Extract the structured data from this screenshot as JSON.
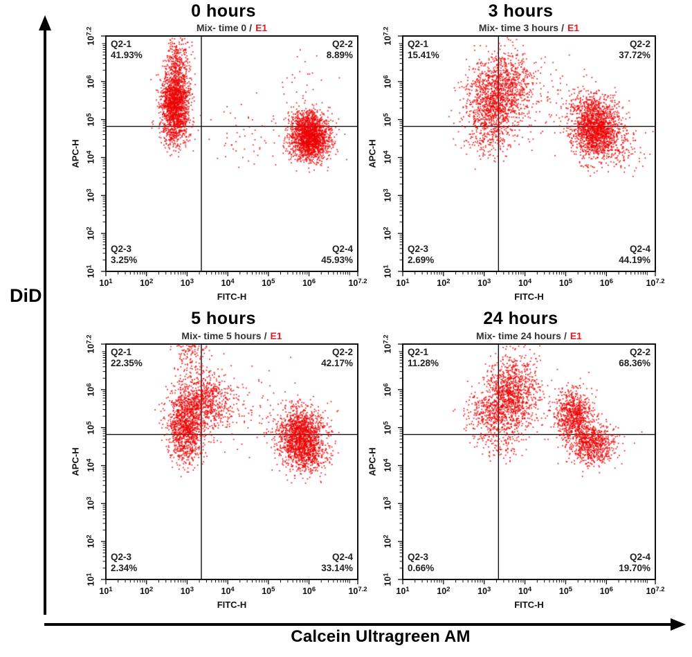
{
  "figure": {
    "outer_y_label": "DiD",
    "outer_x_label": "Calcein Ultragreen AM"
  },
  "chart_data": {
    "type": "scatter",
    "dot_color": "#ec0000",
    "frame_color": "#111111",
    "accent_red": "#e01b24",
    "x_axis": {
      "label": "FITC-H",
      "scale": "log10",
      "min_exp": 1,
      "max_exp": 7.2,
      "tick_exponents": [
        "1",
        "2",
        "3",
        "4",
        "5",
        "6",
        "7.2"
      ],
      "tick_values": [
        1,
        2,
        3,
        4,
        5,
        6,
        7.2
      ]
    },
    "y_axis": {
      "label": "APC-H",
      "scale": "log10",
      "min_exp": 1,
      "max_exp": 7.2,
      "tick_exponents": [
        "1",
        "2",
        "3",
        "4",
        "5",
        "6",
        "7.2"
      ],
      "tick_values": [
        1,
        2,
        3,
        4,
        5,
        6,
        7.2
      ]
    },
    "panels": [
      {
        "title": "0 hours",
        "subtitle": "Mix- time 0",
        "run_label": "E1",
        "gate_x": 3.35,
        "gate_y": 4.82,
        "quadrants": [
          {
            "label": "Q2-1",
            "pct": "41.93%"
          },
          {
            "label": "Q2-2",
            "pct": "8.89%"
          },
          {
            "label": "Q2-3",
            "pct": "3.25%"
          },
          {
            "label": "Q2-4",
            "pct": "45.93%"
          }
        ],
        "seed": 11,
        "clusters": [
          [
            2.7,
            5.45,
            0.17,
            0.42,
            1500
          ],
          [
            2.78,
            6.45,
            0.16,
            0.38,
            320
          ],
          [
            2.74,
            4.72,
            0.2,
            0.25,
            220
          ],
          [
            6.02,
            4.5,
            0.25,
            0.28,
            1700
          ],
          [
            6.0,
            4.97,
            0.22,
            0.18,
            260
          ],
          [
            4.6,
            4.6,
            0.6,
            0.4,
            60
          ],
          [
            5.85,
            5.9,
            0.35,
            0.55,
            30
          ]
        ]
      },
      {
        "title": "3 hours",
        "subtitle": "Mix- time 3 hours",
        "run_label": "E1",
        "gate_x": 3.35,
        "gate_y": 4.82,
        "quadrants": [
          {
            "label": "Q2-1",
            "pct": "15.41%"
          },
          {
            "label": "Q2-2",
            "pct": "37.72%"
          },
          {
            "label": "Q2-3",
            "pct": "2.69%"
          },
          {
            "label": "Q2-4",
            "pct": "44.19%"
          }
        ],
        "seed": 23,
        "clusters": [
          [
            3.2,
            5.45,
            0.35,
            0.5,
            1050
          ],
          [
            3.6,
            5.95,
            0.35,
            0.45,
            500
          ],
          [
            3.15,
            4.5,
            0.25,
            0.3,
            160
          ],
          [
            5.75,
            4.68,
            0.28,
            0.33,
            1500
          ],
          [
            5.62,
            5.3,
            0.3,
            0.25,
            300
          ],
          [
            4.6,
            5.3,
            0.55,
            0.7,
            90
          ],
          [
            6.35,
            4.25,
            0.3,
            0.28,
            110
          ]
        ]
      },
      {
        "title": "5 hours",
        "subtitle": "Mix- time 5 hours",
        "run_label": "E1",
        "gate_x": 3.35,
        "gate_y": 4.82,
        "quadrants": [
          {
            "label": "Q2-1",
            "pct": "22.35%"
          },
          {
            "label": "Q2-2",
            "pct": "42.17%"
          },
          {
            "label": "Q2-3",
            "pct": "2.34%"
          },
          {
            "label": "Q2-4",
            "pct": "33.14%"
          }
        ],
        "seed": 37,
        "clusters": [
          [
            2.95,
            5.15,
            0.22,
            0.45,
            1000
          ],
          [
            3.5,
            5.7,
            0.33,
            0.4,
            680
          ],
          [
            3.0,
            4.45,
            0.2,
            0.28,
            170
          ],
          [
            5.8,
            4.75,
            0.3,
            0.38,
            1600
          ],
          [
            6.0,
            4.15,
            0.28,
            0.25,
            200
          ],
          [
            4.5,
            5.4,
            0.5,
            0.6,
            80
          ],
          [
            3.1,
            6.9,
            0.22,
            0.25,
            110
          ]
        ]
      },
      {
        "title": "24 hours",
        "subtitle": "Mix- time 24 hours",
        "run_label": "E1",
        "gate_x": 3.35,
        "gate_y": 4.82,
        "quadrants": [
          {
            "label": "Q2-1",
            "pct": "11.28%"
          },
          {
            "label": "Q2-2",
            "pct": "68.36%"
          },
          {
            "label": "Q2-3",
            "pct": "0.66%"
          },
          {
            "label": "Q2-4",
            "pct": "19.70%"
          }
        ],
        "seed": 51,
        "clusters": [
          [
            3.62,
            5.75,
            0.33,
            0.45,
            1000
          ],
          [
            3.1,
            5.3,
            0.3,
            0.35,
            300
          ],
          [
            3.85,
            6.55,
            0.28,
            0.3,
            130
          ],
          [
            5.2,
            5.3,
            0.24,
            0.33,
            800
          ],
          [
            5.65,
            4.55,
            0.28,
            0.28,
            700
          ],
          [
            4.6,
            5.55,
            0.5,
            0.45,
            60
          ],
          [
            3.45,
            4.55,
            0.28,
            0.25,
            90
          ]
        ]
      }
    ]
  }
}
